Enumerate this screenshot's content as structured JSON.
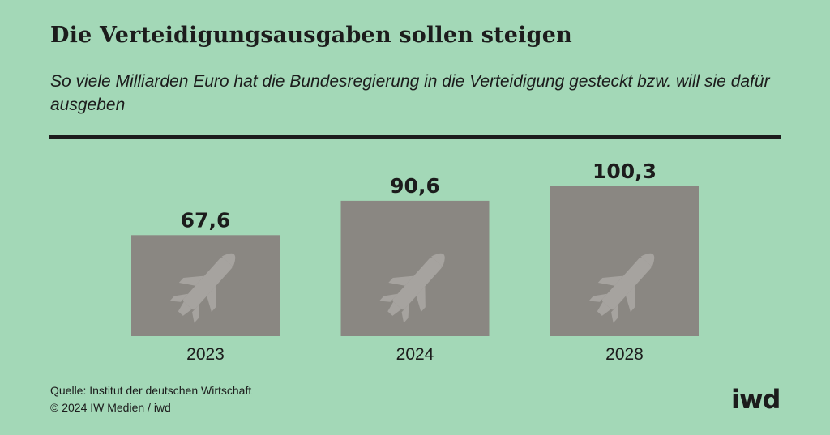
{
  "header": {
    "title": "Die Verteidigungsausgaben sollen steigen",
    "subtitle": "So viele Milliarden Euro hat die Bundesregierung in die Verteidigung gesteckt bzw. will sie dafür ausgeben"
  },
  "chart_data": {
    "type": "bar",
    "categories": [
      "2023",
      "2024",
      "2028"
    ],
    "values": [
      67.6,
      90.6,
      100.3
    ],
    "value_labels": [
      "67,6",
      "90,6",
      "100,3"
    ],
    "bar_icon": "rocket-icon",
    "ylim": [
      0,
      100.3
    ],
    "grid": false,
    "colors": {
      "bar": "#8a8782",
      "icon": "#a6a39f",
      "text": "#1c1c1c",
      "background": "#a3d8b7"
    }
  },
  "footer": {
    "source": "Quelle: Institut der deutschen Wirtschaft",
    "copyright": "© 2024 IW Medien / iwd",
    "logo": "iwd"
  }
}
